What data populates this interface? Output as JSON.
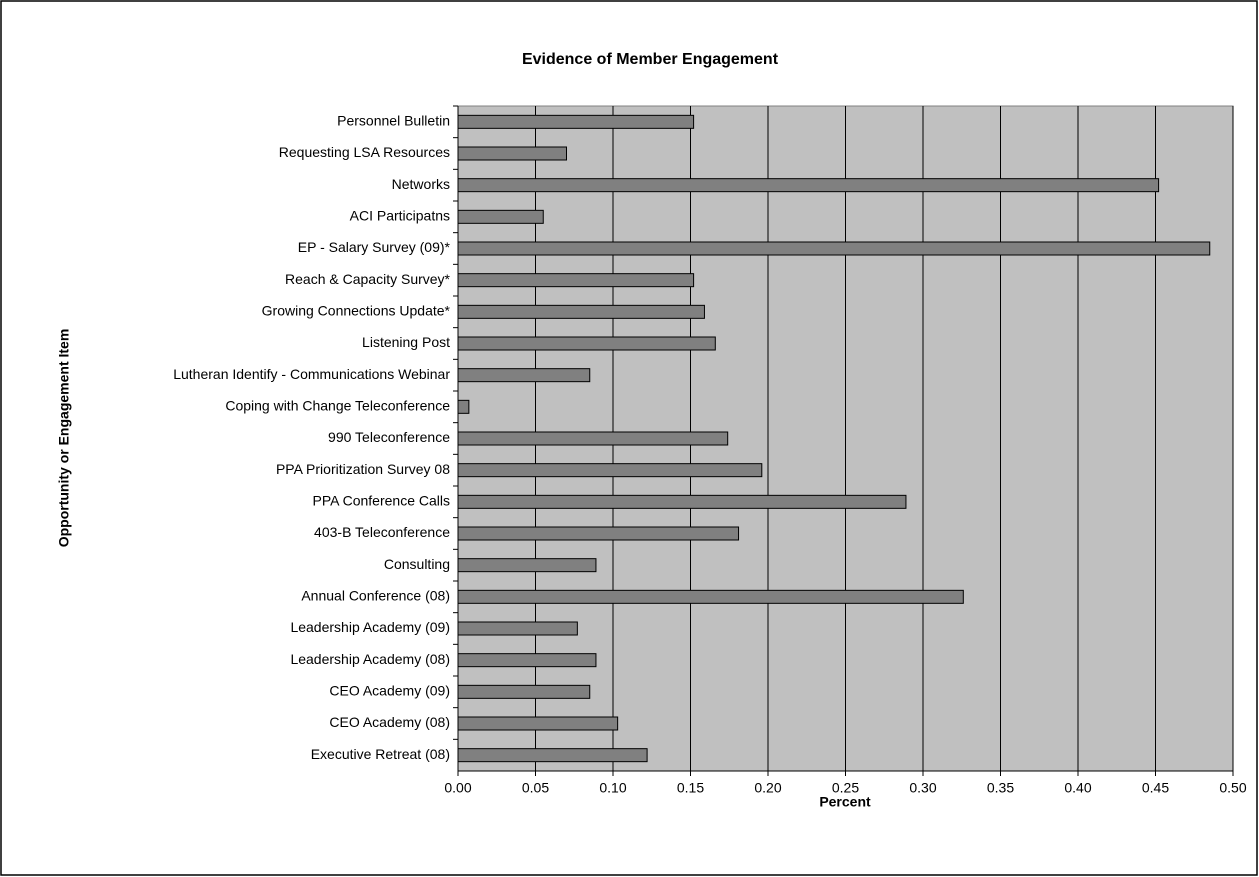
{
  "chart_data": {
    "type": "bar",
    "orientation": "horizontal",
    "title": "Evidence of Member Engagement",
    "x_label": "Percent",
    "y_label": "Opportunity or Engagement Item",
    "categories": [
      "Personnel Bulletin",
      "Requesting LSA Resources",
      "Networks",
      "ACI Participatns",
      "EP - Salary Survey (09)*",
      "Reach & Capacity Survey*",
      "Growing Connections Update*",
      "Listening Post",
      "Lutheran Identify - Communications Webinar",
      "Coping with Change Teleconference",
      "990 Teleconference",
      "PPA Prioritization Survey 08",
      "PPA Conference Calls",
      "403-B Teleconference",
      "Consulting",
      "Annual Conference (08)",
      "Leadership Academy (09)",
      "Leadership Academy (08)",
      "CEO Academy (09)",
      "CEO Academy (08)",
      "Executive Retreat (08)"
    ],
    "values": [
      0.152,
      0.07,
      0.452,
      0.055,
      0.485,
      0.152,
      0.159,
      0.166,
      0.085,
      0.007,
      0.174,
      0.196,
      0.289,
      0.181,
      0.089,
      0.326,
      0.077,
      0.089,
      0.085,
      0.103,
      0.122
    ],
    "color": "#808080",
    "plot_background": "#c0c0c0",
    "xlim": [
      0,
      0.5
    ],
    "xticks": [
      {
        "value": 0,
        "label": "0.00"
      },
      0.05,
      {
        "value": 0.1,
        "label": "0.10"
      },
      0.15,
      {
        "value": 0.2,
        "label": "0.20"
      },
      0.25,
      {
        "value": 0.3,
        "label": "0.30"
      },
      0.35,
      {
        "value": 0.4,
        "label": "0.40"
      },
      0.45,
      {
        "value": 0.5,
        "label": "0.50"
      }
    ],
    "grid": true
  }
}
